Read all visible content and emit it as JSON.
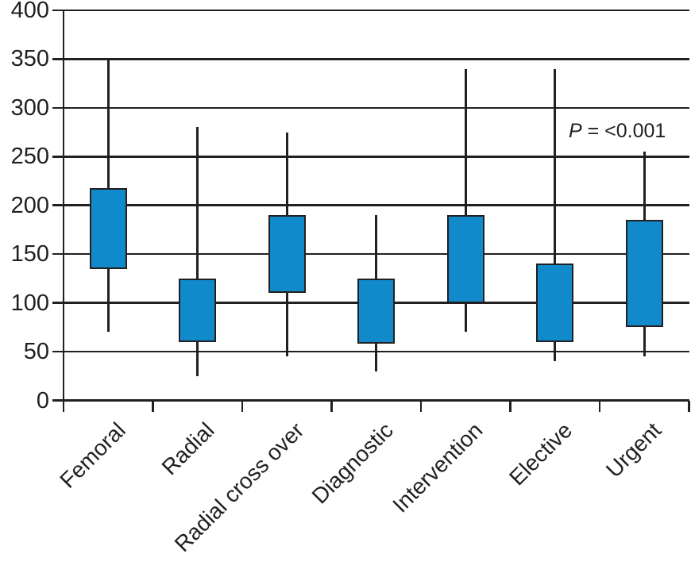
{
  "chart_data": {
    "type": "box",
    "title": "",
    "xlabel": "",
    "ylabel": "",
    "ylim": [
      0,
      400
    ],
    "yticks": [
      0,
      50,
      100,
      150,
      200,
      250,
      300,
      350,
      400
    ],
    "grid": "horizontal",
    "legend": "none",
    "median_shown": false,
    "whisker_caps": false,
    "categories": [
      "Femoral",
      "Radial",
      "Radial cross over",
      "Diagnostic",
      "Intervention",
      "Elective",
      "Urgent"
    ],
    "boxes": [
      {
        "label": "Femoral",
        "whisker_low": 70,
        "box_low": 135,
        "box_high": 218,
        "whisker_high": 350
      },
      {
        "label": "Radial",
        "whisker_low": 25,
        "box_low": 60,
        "box_high": 125,
        "whisker_high": 280
      },
      {
        "label": "Radial cross over",
        "whisker_low": 45,
        "box_low": 110,
        "box_high": 190,
        "whisker_high": 275
      },
      {
        "label": "Diagnostic",
        "whisker_low": 30,
        "box_low": 58,
        "box_high": 125,
        "whisker_high": 190
      },
      {
        "label": "Intervention",
        "whisker_low": 70,
        "box_low": 100,
        "box_high": 190,
        "whisker_high": 340
      },
      {
        "label": "Elective",
        "whisker_low": 40,
        "box_low": 60,
        "box_high": 140,
        "whisker_high": 340
      },
      {
        "label": "Urgent",
        "whisker_low": 45,
        "box_low": 75,
        "box_high": 185,
        "whisker_high": 255
      }
    ],
    "annotation": {
      "p_label": "P",
      "p_value": " = <0.001"
    },
    "colors": {
      "box_fill": "#118acb",
      "line": "#231f20",
      "background": "#ffffff"
    }
  }
}
